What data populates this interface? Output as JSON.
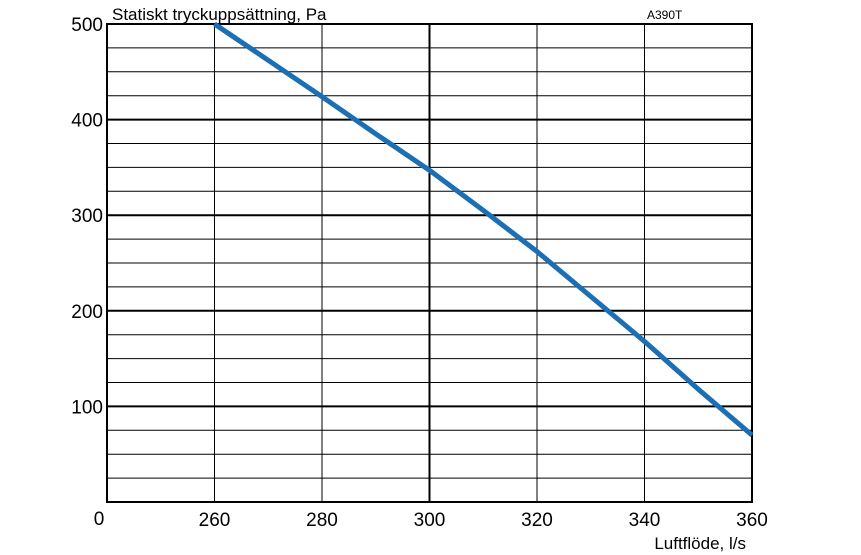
{
  "chart_data": {
    "type": "line",
    "title": "Statiskt tryckuppsättning, Pa",
    "model_label": "A390T",
    "xlabel": "Luftflöde, l/s",
    "ylabel": "",
    "origin_label": "0",
    "xlim": [
      240,
      360
    ],
    "ylim": [
      0,
      500
    ],
    "x_ticks": [
      260,
      280,
      300,
      320,
      340,
      360
    ],
    "y_ticks": [
      100,
      200,
      300,
      400,
      500
    ],
    "y_minor_step": 25,
    "grid": true,
    "line_color": "#1a6fb5",
    "series": [
      {
        "x": [
          260,
          270,
          280,
          290,
          300,
          310,
          320,
          330,
          340,
          350,
          360
        ],
        "y": [
          500,
          462,
          424,
          385,
          347,
          305,
          262,
          215,
          168,
          118,
          70
        ]
      }
    ]
  }
}
